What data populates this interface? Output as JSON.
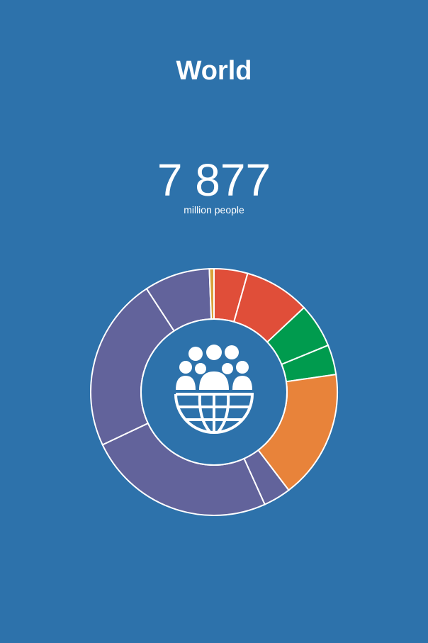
{
  "chart_data": {
    "type": "donut",
    "title": "World",
    "headline": "7 877",
    "headline_unit": "million people",
    "values": [
      4.4,
      8.6,
      5.8,
      3.9,
      16.9,
      3.6,
      24.7,
      22.8,
      8.6,
      0.6
    ],
    "colors": [
      "#e04e39",
      "#e04e39",
      "#009b4e",
      "#009b4e",
      "#e8833a",
      "#62639b",
      "#62639b",
      "#62639b",
      "#62639b",
      "#d9a23a"
    ]
  }
}
